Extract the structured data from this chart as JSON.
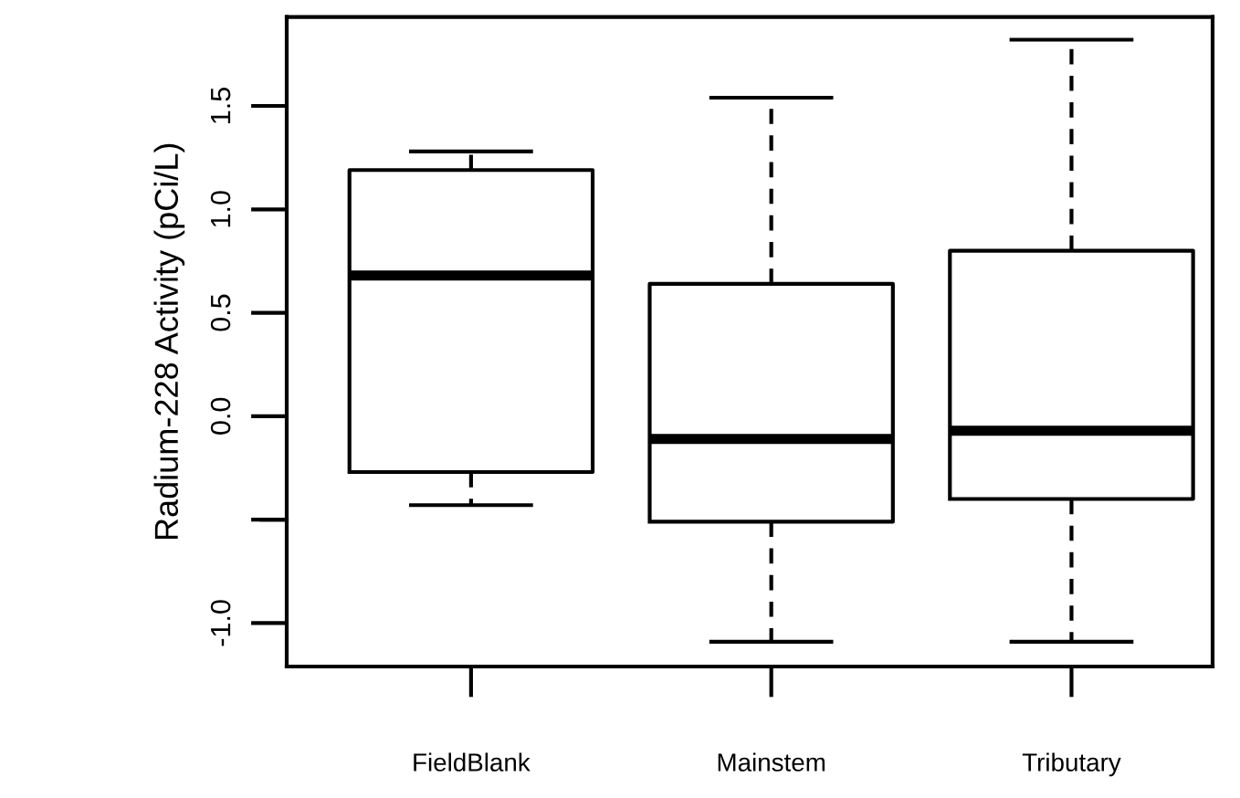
{
  "chart_data": {
    "type": "box",
    "ylabel": "Radium-228 Activity (pCi/L)",
    "categories": [
      "FieldBlank",
      "Mainstem",
      "Tributary"
    ],
    "boxes": [
      {
        "low": -0.43,
        "q1": -0.27,
        "median": 0.68,
        "q3": 1.19,
        "high": 1.28
      },
      {
        "low": -1.09,
        "q1": -0.51,
        "median": -0.11,
        "q3": 0.64,
        "high": 1.54
      },
      {
        "low": -1.09,
        "q1": -0.4,
        "median": -0.07,
        "q3": 0.8,
        "high": 1.82
      }
    ],
    "color": "#000000",
    "ylim": [
      -1.21,
      1.93
    ],
    "yticks": [
      {
        "value": -1.0,
        "label": "-1.0"
      },
      {
        "value": -0.5,
        "label": null
      },
      {
        "value": 0.0,
        "label": "0.0"
      },
      {
        "value": 0.5,
        "label": "0.5"
      },
      {
        "value": 1.0,
        "label": "1.0"
      },
      {
        "value": 1.5,
        "label": "1.5"
      }
    ],
    "line_style": "dashed",
    "grid": false
  }
}
